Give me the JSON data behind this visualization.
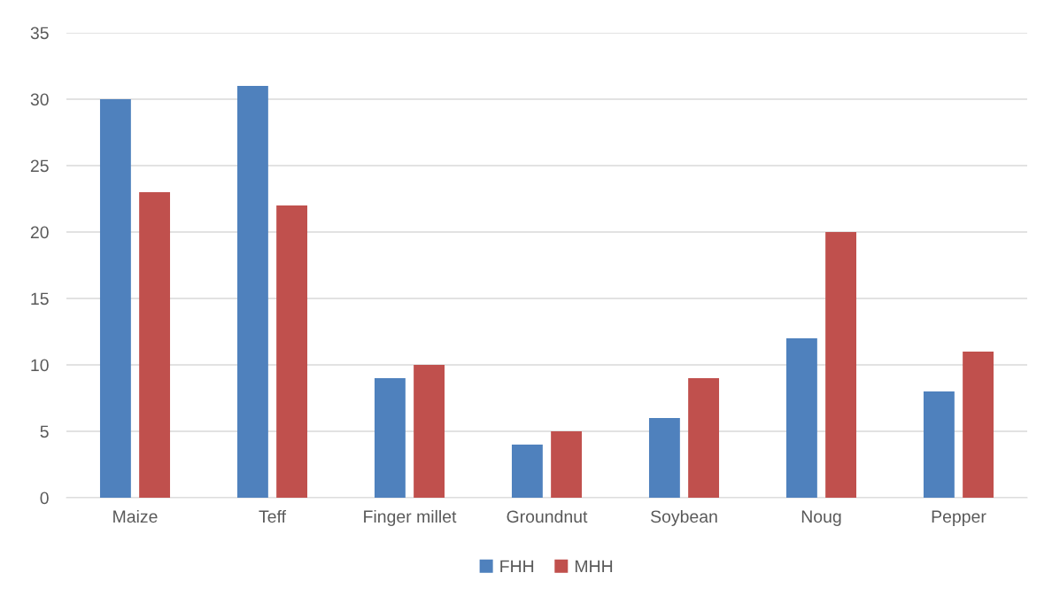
{
  "chart_data": {
    "type": "bar",
    "categories": [
      "Maize",
      "Teff",
      "Finger millet",
      "Groundnut",
      "Soybean",
      "Noug",
      "Pepper"
    ],
    "series": [
      {
        "name": "FHH",
        "color": "#4f81bd",
        "values": [
          30,
          31,
          9,
          4,
          6,
          12,
          8
        ]
      },
      {
        "name": "MHH",
        "color": "#c0504d",
        "values": [
          23,
          22,
          10,
          5,
          9,
          20,
          11
        ]
      }
    ],
    "ylim": [
      0,
      35
    ],
    "yticks": [
      0,
      5,
      10,
      15,
      20,
      25,
      30,
      35
    ],
    "grid": "y",
    "legend": "bottom"
  }
}
